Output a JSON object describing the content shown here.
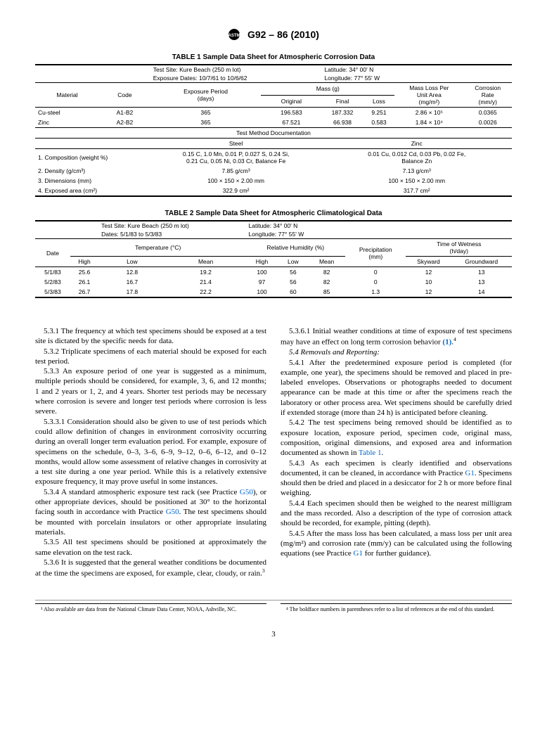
{
  "header": {
    "std": "G92 – 86 (2010)"
  },
  "table1": {
    "title": "TABLE 1 Sample Data Sheet for Atmospheric Corrosion Data",
    "meta": {
      "site_label": "Test Site: Kure Beach (250 m lot)",
      "dates_label": "Exposure Dates: 10/7/61 to 10/6/62",
      "lat": "Latitude: 34° 00' N",
      "lon": "Longitude: 77° 55' W"
    },
    "headers": {
      "material": "Material",
      "code": "Code",
      "period": "Exposure Period\n(days)",
      "mass": "Mass (g)",
      "original": "Original",
      "final": "Final",
      "loss": "Loss",
      "mlpua": "Mass Loss Per\nUnit Area\n(mg/m²)",
      "rate": "Corrosion\nRate\n(mm/y)"
    },
    "rows": [
      {
        "material": "Cu-steel",
        "code": "A1-B2",
        "period": "365",
        "original": "196.583",
        "final": "187.332",
        "loss": "9.251",
        "mlpua": "2.86 × 10⁵",
        "rate": "0.0365"
      },
      {
        "material": "Zinc",
        "code": "A2-B2",
        "period": "365",
        "original": "67.521",
        "final": "66.938",
        "loss": "0.583",
        "mlpua": "1.84 × 10⁴",
        "rate": "0.0026"
      }
    ],
    "doc_header": "Test Method Documentation",
    "doc_cols": {
      "steel": "Steel",
      "zinc": "Zinc"
    },
    "doc_rows": [
      {
        "label": "1. Composition (weight %)",
        "steel": "0.15 C, 1.0 Mn, 0.01 P, 0.027 S, 0.24 Si,\n0.21 Cu, 0.05 Ni, 0.03 Cr, Balance Fe",
        "zinc": "0.01 Cu, 0.012 Cd, 0.03 Pb, 0.02 Fe,\nBalance Zn"
      },
      {
        "label": "2. Density (g/cm³)",
        "steel": "7.85 g/cm³",
        "zinc": "7.13 g/cm³"
      },
      {
        "label": "3. Dimensions (mm)",
        "steel": "100 × 150 × 2.00 mm",
        "zinc": "100 × 150 × 2.00 mm"
      },
      {
        "label": "4. Exposed area (cm²)",
        "steel": "322.9 cm²",
        "zinc": "317.7 cm²"
      }
    ]
  },
  "table2": {
    "title": "TABLE 2 Sample Data Sheet for Atmospheric Climatological Data",
    "meta": {
      "site_label": "Test Site: Kure Beach (250 m lot)",
      "dates_label": "Dates: 5/1/83 to 5/3/83",
      "lat": "Latitude: 34° 00' N",
      "lon": "Longitude: 77° 55' W"
    },
    "headers": {
      "date": "Date",
      "temp": "Temperature (°C)",
      "rh": "Relative Humidity (%)",
      "precip": "Precipitation\n(mm)",
      "tow": "Time of Wetness\n(h/day)",
      "high": "High",
      "low": "Low",
      "mean": "Mean",
      "sky": "Skyward",
      "ground": "Groundward"
    },
    "rows": [
      {
        "date": "5/1/83",
        "th": "25.6",
        "tl": "12.8",
        "tm": "19.2",
        "rh": "100",
        "rl": "56",
        "rm": "82",
        "p": "0",
        "s": "12",
        "g": "13"
      },
      {
        "date": "5/2/83",
        "th": "26.1",
        "tl": "16.7",
        "tm": "21.4",
        "rh": "97",
        "rl": "56",
        "rm": "82",
        "p": "0",
        "s": "10",
        "g": "13"
      },
      {
        "date": "5/3/83",
        "th": "26.7",
        "tl": "17.8",
        "tm": "22.2",
        "rh": "100",
        "rl": "60",
        "rm": "85",
        "p": "1.3",
        "s": "12",
        "g": "14"
      }
    ]
  },
  "body": {
    "p531": "5.3.1 The frequency at which test specimens should be exposed at a test site is dictated by the specific needs for data.",
    "p532": "5.3.2 Triplicate specimens of each material should be exposed for each test period.",
    "p533": "5.3.3 An exposure period of one year is suggested as a minimum, multiple periods should be considered, for example, 3, 6, and 12 months; 1 and 2 years or 1, 2, and 4 years. Shorter test periods may be necessary where corrosion is severe and longer test periods where corrosion is less severe.",
    "p5331": "5.3.3.1 Consideration should also be given to use of test periods which could allow definition of changes in environment corrosivity occurring during an overall longer term evaluation period. For example, exposure of specimens on the schedule, 0–3, 3–6, 6–9, 9–12, 0–6, 6–12, and 0–12 months, would allow some assessment of relative changes in corrosivity at a test site during a one year period. While this is a relatively extensive exposure frequency, it may prove useful in some instances.",
    "p534a": "5.3.4 A standard atmospheric exposure test rack (see Practice ",
    "p534b": "), or other appropriate devices, should be positioned at 30° to the horizontal facing south in accordance with Practice ",
    "p534c": ". The test specimens should be mounted with porcelain insulators or other appropriate insulating materials.",
    "p535": "5.3.5 All test specimens should be positioned at approximately the same elevation on the test rack.",
    "p536": "5.3.6 It is suggested that the general weather conditions be documented at the time the specimens are exposed, for example, clear, cloudy, or rain.",
    "p5361a": "5.3.6.1 Initial weather conditions at time of exposure of test specimens may have an effect on long term corrosion behavior ",
    "p5361b": ".",
    "h54": "5.4 Removals and Reporting:",
    "p541": "5.4.1 After the predetermined exposure period is completed (for example, one year), the specimens should be removed and placed in pre-labeled envelopes. Observations or photographs needed to document appearance can be made at this time or after the specimens reach the laboratory or other process area. Wet specimens should be carefully dried if extended storage (more than 24 h) is anticipated before cleaning.",
    "p542a": "5.4.2 The test specimens being removed should be identified as to exposure location, exposure period, specimen code, original mass, composition, original dimensions, and exposed area and information documented as shown in ",
    "p542b": ".",
    "p543a": "5.4.3 As each specimen is clearly identified and observations documented, it can be cleaned, in accordance with Practice ",
    "p543b": ". Specimens should then be dried and placed in a desiccator for 2 h or more before final weighing.",
    "p544": "5.4.4 Each specimen should then be weighed to the nearest milligram and the mass recorded. Also a description of the type of corrosion attack should be recorded, for example, pitting (depth).",
    "p545a": "5.4.5 After the mass loss has been calculated, a mass loss per unit area (mg/m²) and corrosion rate (mm/y) can be calculated using the following equations (see Practice ",
    "p545b": " for further guidance).",
    "link_g50": "G50",
    "link_g1": "G1",
    "link_t1": "Table 1",
    "link_ref1": "(1)"
  },
  "footnotes": {
    "fn3": "³ Also available are data from the National Climate Data Center, NOAA, Ashville, NC.",
    "fn4": "⁴ The boldface numbers in parentheses refer to a list of references at the end of this standard."
  },
  "page": "3"
}
